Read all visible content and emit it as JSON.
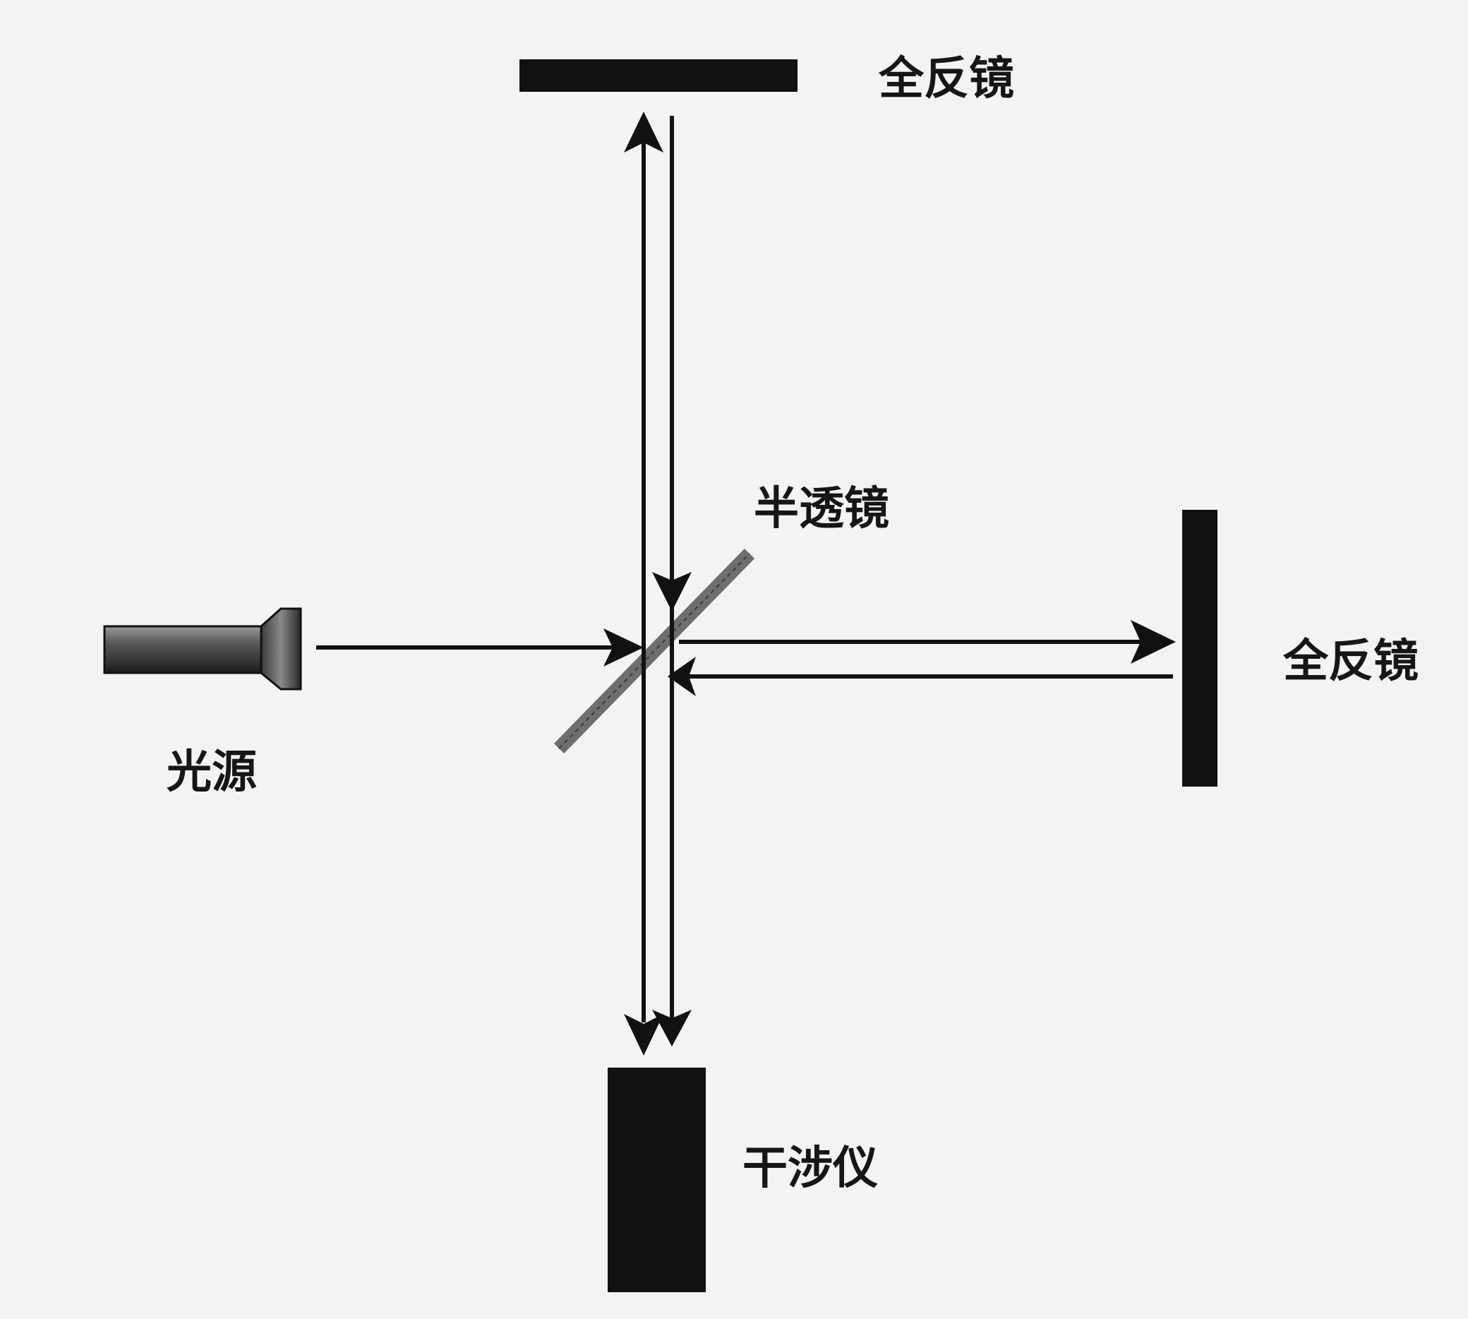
{
  "labels": {
    "top_mirror": "全反镜",
    "right_mirror": "全反镜",
    "beam_splitter": "半透镜",
    "light_source": "光源",
    "interferometer": "干涉仪"
  },
  "colors": {
    "background": "#f3f3f1",
    "ink": "#111111",
    "splitter": "#6e6e6e"
  }
}
